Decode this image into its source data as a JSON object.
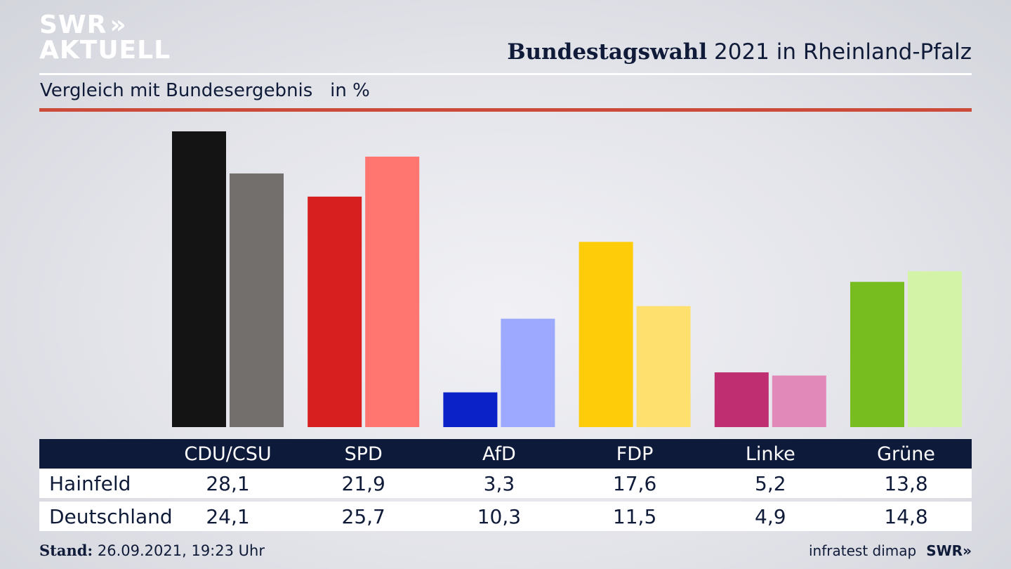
{
  "brand": {
    "logo_line1": "SWR",
    "logo_chevrons": "»",
    "logo_line2": "AKTUELL"
  },
  "header": {
    "title_bold": "Bundestagswahl",
    "title_rest": "2021 in Rheinland-Pfalz",
    "subtitle": "Vergleich mit Bundesergebnis   in %"
  },
  "colors": {
    "navy": "#0e1a3a",
    "accent_red": "#cc4a3a"
  },
  "chart_data": {
    "type": "bar",
    "categories": [
      "CDU/CSU",
      "SPD",
      "AfD",
      "FDP",
      "Linke",
      "Grüne"
    ],
    "series": [
      {
        "name": "Hainfeld",
        "values": [
          28.1,
          21.9,
          3.3,
          17.6,
          5.2,
          13.8
        ],
        "colors": [
          "#141414",
          "#d81f1f",
          "#0a22c8",
          "#ffcc0a",
          "#bf2e70",
          "#78bd20"
        ]
      },
      {
        "name": "Deutschland",
        "values": [
          24.1,
          25.7,
          10.3,
          11.5,
          4.9,
          14.8
        ],
        "colors": [
          "#726f6d",
          "#ff756f",
          "#9ca9ff",
          "#fde06e",
          "#e189b9",
          "#d3f4a6"
        ]
      }
    ],
    "ylim": [
      0,
      28.1
    ]
  },
  "table": {
    "headers": [
      "CDU/CSU",
      "SPD",
      "AfD",
      "FDP",
      "Linke",
      "Grüne"
    ],
    "rows": [
      {
        "label": "Hainfeld",
        "values": [
          "28,1",
          "21,9",
          "3,3",
          "17,6",
          "5,2",
          "13,8"
        ]
      },
      {
        "label": "Deutschland",
        "values": [
          "24,1",
          "25,7",
          "10,3",
          "11,5",
          "4,9",
          "14,8"
        ]
      }
    ]
  },
  "footer": {
    "stand_label": "Stand:",
    "stand_value": "26.09.2021, 19:23 Uhr",
    "source": "infratest dimap",
    "brand": "SWR»"
  }
}
